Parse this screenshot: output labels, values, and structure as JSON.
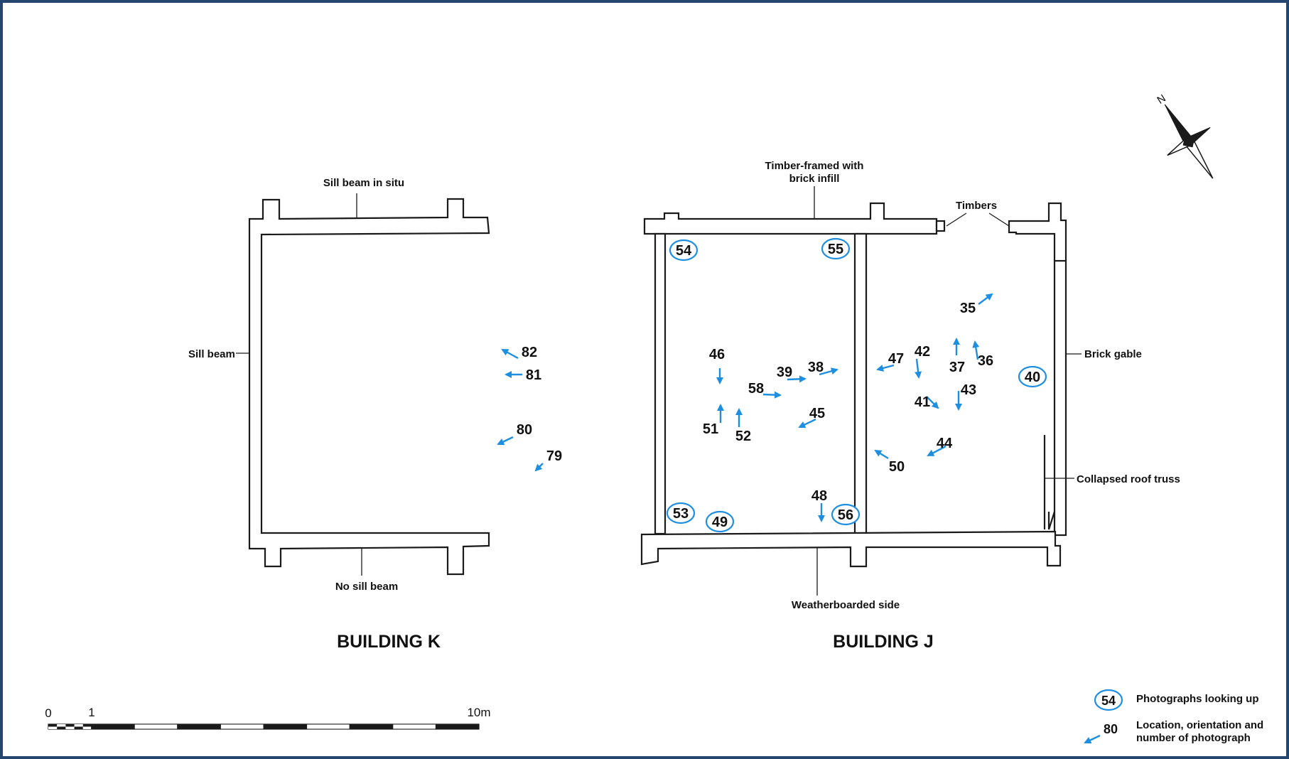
{
  "buildings": {
    "k": {
      "title": "BUILDING K",
      "labels": {
        "sill_in_situ": "Sill beam in situ",
        "sill_beam": "Sill beam",
        "no_sill": "No sill beam"
      }
    },
    "j": {
      "title": "BUILDING  J",
      "labels": {
        "timber_framed_1": "Timber-framed with",
        "timber_framed_2": "brick infill",
        "timbers": "Timbers",
        "brick_gable": "Brick gable",
        "collapsed_truss": "Collapsed roof truss",
        "weatherboarded": "Weatherboarded side"
      }
    }
  },
  "north": {
    "label": "N"
  },
  "scale": {
    "start": "0",
    "mid": "1",
    "end": "10m"
  },
  "legend": {
    "looking_up_sample": "54",
    "looking_up_label": "Photographs looking up",
    "arrow_sample": "80",
    "arrow_label_1": "Location, orientation and",
    "arrow_label_2": "number of photograph"
  },
  "colors": {
    "frame": "#24466f",
    "photo_marker": "#1e8fe0",
    "plan_line": "#1a1a1a"
  },
  "photos_looking_up": [
    "54",
    "55",
    "53",
    "49",
    "56",
    "40"
  ],
  "photo_arrows": [
    "82",
    "81",
    "80",
    "79",
    "46",
    "51",
    "52",
    "58",
    "39",
    "38",
    "45",
    "48",
    "47",
    "42",
    "35",
    "37",
    "36",
    "41",
    "43",
    "44",
    "50"
  ]
}
